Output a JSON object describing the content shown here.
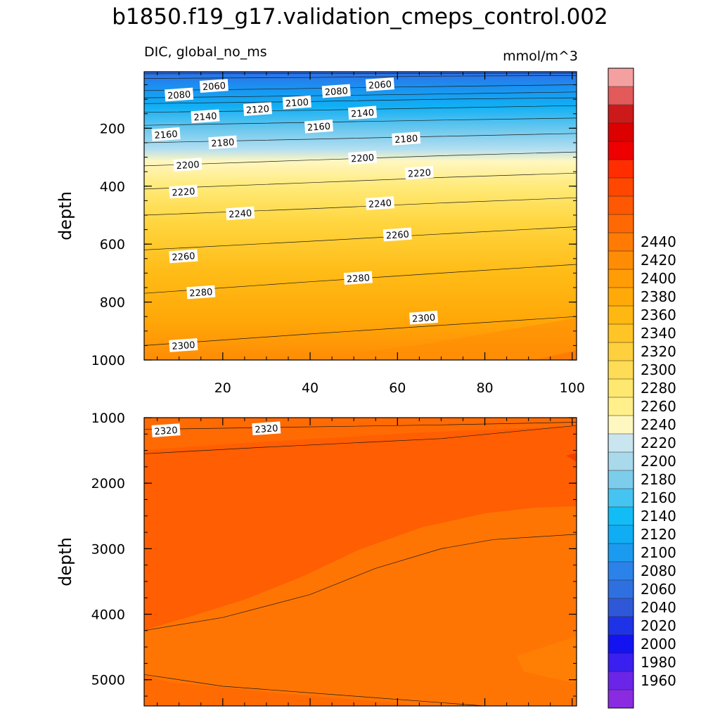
{
  "title": "b1850.f19_g17.validation_cmeps_control.002",
  "colors": {
    "levels": [
      1960,
      1980,
      2000,
      2020,
      2040,
      2060,
      2080,
      2100,
      2120,
      2140,
      2160,
      2180,
      2200,
      2220,
      2240,
      2260,
      2280,
      2300,
      2320,
      2340,
      2360,
      2380,
      2400,
      2420,
      2440
    ],
    "palette": [
      "#8a2be2",
      "#6a25e8",
      "#3b1ff0",
      "#1313f2",
      "#1f33e6",
      "#2f58d8",
      "#2f70e0",
      "#2b83ea",
      "#1b9bf0",
      "#10adf4",
      "#12bdf5",
      "#45c4f2",
      "#7ccdec",
      "#a9daec",
      "#c9e6f0",
      "#fff7c0",
      "#fff08c",
      "#ffe870",
      "#ffdc55",
      "#ffd03d",
      "#ffc426",
      "#ffb812",
      "#ffaa08",
      "#ff9c06",
      "#ff8c05",
      "#ff7b04",
      "#ff6903",
      "#ff5802",
      "#ff4700",
      "#ff2d00",
      "#ee0000",
      "#dd0000",
      "#cc1a1a",
      "#e25a5a",
      "#f5a0a0"
    ]
  },
  "chart_data": [
    {
      "type": "contour",
      "panel": "upper",
      "variable_label": "DIC, global_no_ms",
      "units_label": "mmol/m^3",
      "ylabel": "depth",
      "xlim": [
        2,
        101
      ],
      "ylim": [
        1000,
        5
      ],
      "xticks": [
        20,
        40,
        60,
        80,
        100
      ],
      "yticks": [
        200,
        400,
        600,
        800,
        1000
      ],
      "contours": [
        {
          "level": 2020,
          "points": [
            [
              2,
              5
            ],
            [
              101,
              5
            ]
          ]
        },
        {
          "level": 2040,
          "points": [
            [
              2,
              12
            ],
            [
              101,
              10
            ]
          ]
        },
        {
          "level": 2060,
          "points": [
            [
              2,
              28
            ],
            [
              40,
              25
            ],
            [
              70,
              20
            ],
            [
              101,
              18
            ]
          ]
        },
        {
          "level": 2080,
          "points": [
            [
              2,
              70
            ],
            [
              30,
              65
            ],
            [
              60,
              58
            ],
            [
              101,
              50
            ]
          ]
        },
        {
          "level": 2100,
          "points": [
            [
              2,
              95
            ],
            [
              40,
              88
            ],
            [
              70,
              82
            ],
            [
              101,
              75
            ]
          ]
        },
        {
          "level": 2120,
          "points": [
            [
              2,
              115
            ],
            [
              40,
              108
            ],
            [
              70,
              100
            ],
            [
              101,
              95
            ]
          ]
        },
        {
          "level": 2140,
          "points": [
            [
              2,
              145
            ],
            [
              40,
              138
            ],
            [
              70,
              130
            ],
            [
              101,
              122
            ]
          ]
        },
        {
          "level": 2160,
          "points": [
            [
              2,
              190
            ],
            [
              40,
              180
            ],
            [
              70,
              172
            ],
            [
              101,
              165
            ]
          ]
        },
        {
          "level": 2180,
          "points": [
            [
              2,
              250
            ],
            [
              40,
              238
            ],
            [
              70,
              228
            ],
            [
              101,
              218
            ]
          ]
        },
        {
          "level": 2200,
          "points": [
            [
              2,
              330
            ],
            [
              40,
              310
            ],
            [
              70,
              295
            ],
            [
              101,
              282
            ]
          ]
        },
        {
          "level": 2220,
          "points": [
            [
              2,
              410
            ],
            [
              40,
              388
            ],
            [
              70,
              370
            ],
            [
              101,
              355
            ]
          ]
        },
        {
          "level": 2240,
          "points": [
            [
              2,
              500
            ],
            [
              40,
              478
            ],
            [
              70,
              458
            ],
            [
              101,
              440
            ]
          ]
        },
        {
          "level": 2260,
          "points": [
            [
              2,
              620
            ],
            [
              40,
              590
            ],
            [
              70,
              565
            ],
            [
              101,
              540
            ]
          ]
        },
        {
          "level": 2280,
          "points": [
            [
              2,
              770
            ],
            [
              40,
              730
            ],
            [
              70,
              700
            ],
            [
              101,
              670
            ]
          ]
        },
        {
          "level": 2300,
          "points": [
            [
              2,
              950
            ],
            [
              40,
              910
            ],
            [
              70,
              880
            ],
            [
              101,
              850
            ]
          ]
        }
      ],
      "labels": [
        {
          "text": "2060",
          "x": 18,
          "y": 55
        },
        {
          "text": "2080",
          "x": 10,
          "y": 85
        },
        {
          "text": "2080",
          "x": 46,
          "y": 73
        },
        {
          "text": "2060",
          "x": 56,
          "y": 50
        },
        {
          "text": "2100",
          "x": 37,
          "y": 112
        },
        {
          "text": "2120",
          "x": 28,
          "y": 135
        },
        {
          "text": "2140",
          "x": 16,
          "y": 160
        },
        {
          "text": "2140",
          "x": 52,
          "y": 148
        },
        {
          "text": "2160",
          "x": 7,
          "y": 222
        },
        {
          "text": "2160",
          "x": 42,
          "y": 195
        },
        {
          "text": "2180",
          "x": 20,
          "y": 250
        },
        {
          "text": "2180",
          "x": 62,
          "y": 237
        },
        {
          "text": "2200",
          "x": 12,
          "y": 327
        },
        {
          "text": "2200",
          "x": 52,
          "y": 303
        },
        {
          "text": "2220",
          "x": 11,
          "y": 420
        },
        {
          "text": "2220",
          "x": 65,
          "y": 355
        },
        {
          "text": "2240",
          "x": 24,
          "y": 495
        },
        {
          "text": "2240",
          "x": 56,
          "y": 460
        },
        {
          "text": "2260",
          "x": 11,
          "y": 643
        },
        {
          "text": "2260",
          "x": 60,
          "y": 568
        },
        {
          "text": "2280",
          "x": 15,
          "y": 767
        },
        {
          "text": "2280",
          "x": 51,
          "y": 718
        },
        {
          "text": "2300",
          "x": 11,
          "y": 950
        },
        {
          "text": "2300",
          "x": 66,
          "y": 855
        }
      ]
    },
    {
      "type": "contour",
      "panel": "lower",
      "ylabel": "depth",
      "xlim": [
        2,
        101
      ],
      "ylim": [
        5400,
        1000
      ],
      "yticks": [
        1000,
        2000,
        3000,
        4000,
        5000
      ],
      "contours": [
        {
          "level": 2320,
          "points": [
            [
              2,
              1180
            ],
            [
              30,
              1150
            ],
            [
              70,
              1110
            ],
            [
              101,
              1070
            ]
          ]
        },
        {
          "level": 2340,
          "points": [
            [
              2,
              1550
            ],
            [
              30,
              1450
            ],
            [
              70,
              1320
            ],
            [
              101,
              1120
            ]
          ]
        },
        {
          "level": 2320,
          "points": [
            [
              2,
              4250
            ],
            [
              20,
              4050
            ],
            [
              40,
              3700
            ],
            [
              55,
              3300
            ],
            [
              70,
              3000
            ],
            [
              82,
              2860
            ],
            [
              101,
              2780
            ]
          ]
        },
        {
          "level": 2320,
          "points": [
            [
              2,
              4920
            ],
            [
              20,
              5100
            ],
            [
              50,
              5250
            ],
            [
              70,
              5350
            ],
            [
              80,
              5400
            ]
          ]
        }
      ],
      "labels": [
        {
          "text": "2320",
          "x": 7,
          "y": 1200
        },
        {
          "text": "2320",
          "x": 30,
          "y": 1170
        }
      ]
    }
  ],
  "colorbar": {
    "tick_labels": [
      "1960",
      "1980",
      "2000",
      "2020",
      "2040",
      "2060",
      "2080",
      "2100",
      "2120",
      "2140",
      "2160",
      "2180",
      "2200",
      "2220",
      "2240",
      "2260",
      "2280",
      "2300",
      "2320",
      "2340",
      "2360",
      "2380",
      "2400",
      "2420",
      "2440"
    ]
  }
}
